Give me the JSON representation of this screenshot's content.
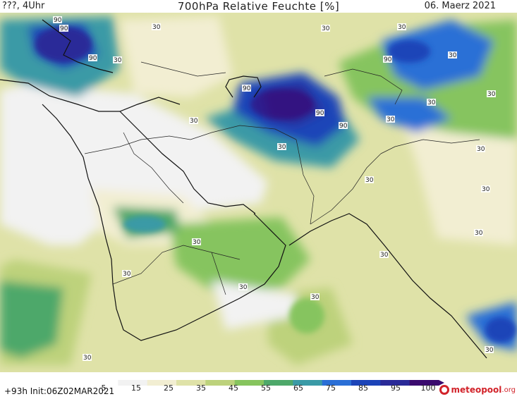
{
  "header": {
    "left_label": "???, 4Uhr",
    "title": "700hPa Relative Feuchte [%]",
    "date": "06. Maerz 2021"
  },
  "footer": {
    "run_info": "+93h Init:06Z02MAR2021"
  },
  "colorbar": {
    "ticks": [
      "5",
      "15",
      "25",
      "35",
      "45",
      "55",
      "65",
      "75",
      "85",
      "95",
      "100"
    ],
    "colors": [
      "#ffffff",
      "#f2f2f2",
      "#f2eed2",
      "#dfe2a8",
      "#bdd27c",
      "#86c45e",
      "#4ea86a",
      "#3a9aa6",
      "#2a6fd6",
      "#1c44b8",
      "#2a2a98",
      "#3a0a6e"
    ]
  },
  "contour_labels": [
    "90",
    "90",
    "90",
    "30",
    "30",
    "30",
    "90",
    "90",
    "90",
    "90",
    "30",
    "30",
    "30",
    "30",
    "30",
    "30",
    "30",
    "30",
    "30",
    "30",
    "30",
    "30",
    "30",
    "30",
    "30",
    "30",
    "30",
    "30"
  ],
  "logo": {
    "name": "meteopool",
    "tld": ".org"
  }
}
